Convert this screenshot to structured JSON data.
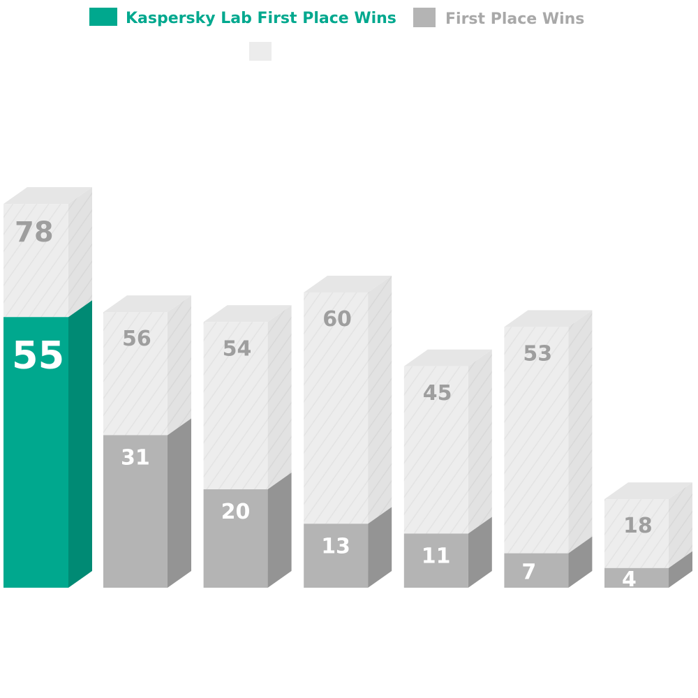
{
  "chart_data": {
    "type": "bar",
    "stacked": true,
    "three_d": true,
    "title": "",
    "xlabel": "",
    "ylabel": "",
    "grid": false,
    "legend_position": "top",
    "categories": [
      "",
      "",
      "",
      "",
      "",
      "",
      ""
    ],
    "series": [
      {
        "name": "Kaspersky Lab First Place Wins",
        "values": [
          55,
          null,
          null,
          null,
          null,
          null,
          null
        ],
        "color": "#00a88e"
      },
      {
        "name": "First Place Wins",
        "values": [
          null,
          31,
          20,
          13,
          11,
          7,
          4
        ],
        "color": "#b4b4b4"
      },
      {
        "name": "",
        "values": [
          78,
          56,
          54,
          60,
          45,
          53,
          18
        ],
        "color": "#ececec"
      }
    ],
    "legend": [
      {
        "label": "Kaspersky Lab First Place Wins",
        "color": "#00a88e",
        "text_color": "#00a88e"
      },
      {
        "label": "First Place Wins",
        "color": "#b4b4b4",
        "text_color": "#a8a8a8"
      },
      {
        "label": "",
        "color": "#ececec",
        "text_color": "#a8a8a8"
      }
    ],
    "label_colors": {
      "highlight": "#ffffff",
      "wins": "#ffffff",
      "total": "#9e9e9e"
    }
  }
}
